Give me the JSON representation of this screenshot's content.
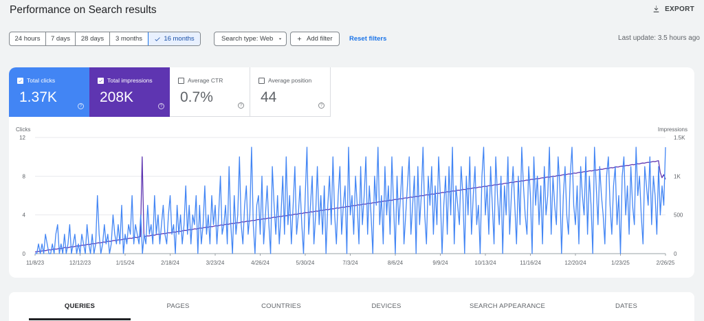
{
  "header": {
    "title": "Performance on Search results",
    "export_label": "EXPORT"
  },
  "filters": {
    "date_ranges": [
      {
        "label": "24 hours",
        "selected": false
      },
      {
        "label": "7 days",
        "selected": false
      },
      {
        "label": "28 days",
        "selected": false
      },
      {
        "label": "3 months",
        "selected": false
      },
      {
        "label": "16 months",
        "selected": true
      }
    ],
    "search_type_label": "Search type: Web",
    "add_filter_label": "Add filter",
    "reset_label": "Reset filters",
    "last_update": "Last update: 3.5 hours ago"
  },
  "metrics": [
    {
      "label": "Total clicks",
      "value": "1.37K",
      "checked": true
    },
    {
      "label": "Total impressions",
      "value": "208K",
      "checked": true
    },
    {
      "label": "Average CTR",
      "value": "0.7%",
      "checked": false
    },
    {
      "label": "Average position",
      "value": "44",
      "checked": false
    }
  ],
  "colors": {
    "clicks": "#4285f4",
    "impressions": "#5e35b1",
    "accent": "#1a73e8"
  },
  "chart_data": {
    "type": "line",
    "y_left_label": "Clicks",
    "y_right_label": "Impressions",
    "y_left_ticks": [
      "12",
      "8",
      "4",
      "0"
    ],
    "y_right_ticks": [
      "1.5K",
      "1K",
      "500",
      "0"
    ],
    "ylim_left": [
      0,
      12
    ],
    "ylim_right": [
      0,
      1500
    ],
    "x_tick_labels": [
      "11/8/23",
      "12/12/23",
      "1/15/24",
      "2/18/24",
      "3/23/24",
      "4/26/24",
      "5/30/24",
      "7/3/24",
      "8/6/24",
      "9/9/24",
      "10/13/24",
      "11/16/24",
      "12/20/24",
      "1/23/25",
      "2/26/25"
    ],
    "series": [
      {
        "name": "Clicks",
        "axis": "left",
        "values": [
          0,
          0,
          1,
          0,
          1,
          0,
          2,
          1,
          0,
          0,
          1,
          0,
          2,
          3,
          0,
          1,
          0,
          2,
          0,
          1,
          3,
          0,
          1,
          2,
          0,
          1,
          0,
          2,
          1,
          0,
          3,
          1,
          0,
          2,
          0,
          1,
          6,
          2,
          0,
          1,
          3,
          1,
          2,
          0,
          1,
          4,
          2,
          1,
          3,
          1,
          5,
          0,
          2,
          1,
          3,
          2,
          6,
          1,
          3,
          2,
          1,
          4,
          0,
          2,
          1,
          5,
          2,
          3,
          1,
          6,
          2,
          4,
          1,
          3,
          5,
          2,
          1,
          4,
          6,
          2,
          3,
          0,
          5,
          2,
          4,
          1,
          3,
          7,
          2,
          5,
          1,
          4,
          3,
          6,
          0,
          5,
          1,
          3,
          7,
          2,
          4,
          1,
          6,
          3,
          5,
          1,
          4,
          8,
          2,
          3,
          5,
          1,
          9,
          3,
          0,
          6,
          2,
          4,
          10,
          3,
          1,
          5,
          7,
          2,
          4,
          11,
          3,
          0,
          5,
          6,
          2,
          8,
          1,
          4,
          7,
          3,
          0,
          9,
          5,
          2,
          6,
          1,
          4,
          8,
          2,
          10,
          3,
          6,
          1,
          5,
          9,
          2,
          4,
          7,
          3,
          0,
          6,
          11,
          2,
          5,
          8,
          1,
          4,
          9,
          3,
          6,
          2,
          7,
          0,
          5,
          8,
          3,
          10,
          4,
          1,
          6,
          9,
          2,
          5,
          7,
          0,
          11,
          4,
          6,
          2,
          8,
          5,
          1,
          9,
          3,
          6,
          10,
          2,
          7,
          4,
          0,
          8,
          5,
          11,
          3,
          6,
          1,
          9,
          4,
          7,
          2,
          10,
          5,
          0,
          8,
          3,
          6,
          9,
          1,
          4,
          7,
          10,
          2,
          5,
          8,
          0,
          9,
          3,
          6,
          11,
          4,
          1,
          8,
          5,
          9,
          2,
          7,
          3,
          10,
          6,
          0,
          5,
          8,
          2,
          9,
          4,
          11,
          1,
          7,
          5,
          3,
          9,
          6,
          0,
          8,
          4,
          10,
          2,
          6,
          9,
          3,
          5,
          0,
          8,
          11,
          4,
          7,
          2,
          9,
          5,
          1,
          10,
          6,
          3,
          8,
          0,
          7,
          4,
          10,
          2,
          6,
          9,
          5,
          1,
          8,
          3,
          11,
          7,
          4,
          2,
          9,
          6,
          0,
          10,
          5,
          8,
          3,
          7,
          1,
          9,
          4,
          6,
          11,
          2,
          8,
          5,
          3,
          10,
          7,
          0,
          6,
          9,
          4,
          2,
          8,
          11,
          5,
          3,
          7,
          1,
          9,
          6,
          4,
          10,
          2,
          8,
          5,
          0,
          11,
          7,
          3,
          9,
          6,
          4,
          1,
          8,
          10,
          5,
          2,
          7,
          9,
          3,
          6,
          0,
          8,
          10,
          4,
          7,
          2,
          9,
          5,
          3,
          11,
          6,
          8,
          4,
          1,
          9,
          7,
          5,
          10,
          3,
          8,
          6,
          2,
          9,
          4,
          7,
          5,
          11
        ],
        "color": "#4285f4"
      },
      {
        "name": "Impressions",
        "axis": "right",
        "values": [
          20,
          25,
          30,
          28,
          35,
          40,
          38,
          45,
          50,
          48,
          55,
          60,
          58,
          62,
          70,
          65,
          72,
          80,
          75,
          78,
          85,
          90,
          88,
          95,
          100,
          98,
          105,
          110,
          108,
          115,
          120,
          118,
          125,
          130,
          128,
          135,
          140,
          138,
          145,
          150,
          148,
          155,
          160,
          158,
          165,
          170,
          168,
          175,
          180,
          178,
          185,
          190,
          188,
          195,
          200,
          198,
          205,
          210,
          208,
          215,
          220,
          1250,
          218,
          225,
          230,
          228,
          235,
          240,
          238,
          245,
          250,
          248,
          255,
          260,
          258,
          265,
          270,
          268,
          275,
          280,
          278,
          285,
          290,
          288,
          295,
          300,
          298,
          305,
          310,
          308,
          315,
          320,
          318,
          325,
          330,
          328,
          335,
          340,
          338,
          345,
          350,
          348,
          355,
          360,
          358,
          365,
          370,
          368,
          375,
          380,
          378,
          385,
          390,
          388,
          395,
          400,
          398,
          405,
          410,
          408,
          415,
          420,
          418,
          425,
          430,
          428,
          435,
          440,
          438,
          445,
          450,
          448,
          455,
          460,
          458,
          465,
          470,
          468,
          475,
          480,
          478,
          485,
          490,
          488,
          495,
          500,
          498,
          505,
          510,
          508,
          515,
          520,
          518,
          525,
          530,
          528,
          535,
          540,
          538,
          545,
          550,
          548,
          555,
          560,
          558,
          565,
          570,
          568,
          575,
          580,
          578,
          585,
          590,
          588,
          595,
          600,
          598,
          605,
          610,
          608,
          615,
          620,
          618,
          625,
          630,
          628,
          635,
          640,
          638,
          645,
          650,
          648,
          655,
          660,
          658,
          665,
          670,
          668,
          675,
          680,
          678,
          685,
          690,
          688,
          695,
          700,
          698,
          705,
          710,
          708,
          715,
          720,
          718,
          725,
          730,
          728,
          735,
          740,
          738,
          745,
          750,
          748,
          755,
          760,
          758,
          765,
          770,
          768,
          775,
          780,
          778,
          785,
          790,
          788,
          795,
          800,
          798,
          805,
          810,
          808,
          815,
          820,
          818,
          825,
          830,
          828,
          835,
          840,
          838,
          845,
          850,
          848,
          855,
          860,
          858,
          865,
          870,
          868,
          875,
          880,
          878,
          885,
          890,
          888,
          895,
          900,
          898,
          905,
          910,
          908,
          915,
          920,
          918,
          925,
          930,
          928,
          935,
          940,
          938,
          945,
          950,
          948,
          955,
          960,
          958,
          965,
          970,
          968,
          975,
          980,
          978,
          985,
          990,
          988,
          995,
          1000,
          998,
          1005,
          1010,
          1008,
          1015,
          1020,
          1018,
          1025,
          1030,
          1028,
          1035,
          1040,
          1038,
          1045,
          1050,
          1048,
          1055,
          1060,
          1058,
          1065,
          1070,
          1068,
          1075,
          1080,
          1078,
          1085,
          1090,
          1088,
          1095,
          1100,
          1098,
          1105,
          1110,
          1108,
          1115,
          1120,
          1118,
          1125,
          1130,
          1128,
          1135,
          1140,
          1138,
          1145,
          1150,
          1148,
          1155,
          1160,
          1158,
          1165,
          1170,
          1168,
          1175,
          1180,
          1178,
          1185,
          1190,
          1188,
          1195,
          1200,
          1050,
          980,
          1020,
          960
        ],
        "color": "#5e35b1"
      }
    ]
  },
  "tabs": [
    {
      "label": "QUERIES",
      "active": true
    },
    {
      "label": "PAGES",
      "active": false
    },
    {
      "label": "COUNTRIES",
      "active": false
    },
    {
      "label": "DEVICES",
      "active": false
    },
    {
      "label": "SEARCH APPEARANCE",
      "active": false
    },
    {
      "label": "DATES",
      "active": false
    }
  ]
}
